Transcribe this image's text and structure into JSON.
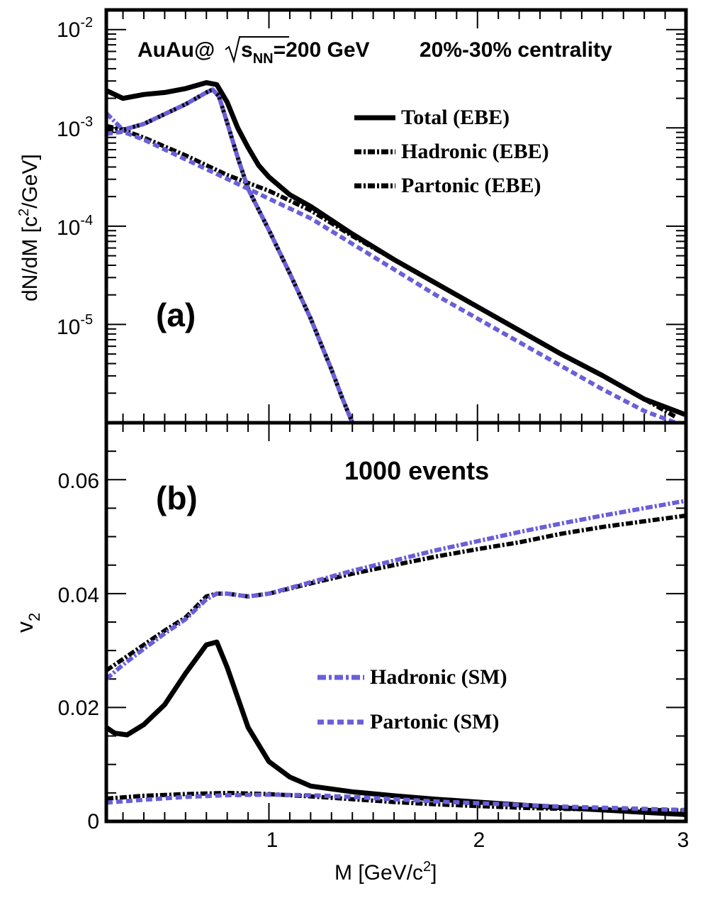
{
  "chart_data": [
    {
      "panel": "(a)",
      "type": "line",
      "yscale": "log",
      "xlim": [
        0.22,
        3.0
      ],
      "ylim_log10": [
        -6.0,
        -1.8
      ],
      "ylabel": "dN/dM [c2/GeV]",
      "y_ticks_log10": [
        -2,
        -3,
        -4,
        -5
      ],
      "annotation": "AuAu@√s_NN=200 GeV   20%-30% centrality",
      "annotation_parts": {
        "system": "AuAu@",
        "sym": "s",
        "sub": "NN",
        "energy": "=200 GeV",
        "centrality": "20%-30% centrality"
      },
      "panel_label": "(a)",
      "legend": [
        "Total (EBE)",
        "Hadronic (EBE)",
        "Partonic (EBE)"
      ],
      "series": [
        {
          "name": "Total (EBE)",
          "color": "#000000",
          "style": "solid",
          "x": [
            0.22,
            0.3,
            0.4,
            0.5,
            0.6,
            0.7,
            0.75,
            0.8,
            0.85,
            0.9,
            0.95,
            1.0,
            1.1,
            1.2,
            1.4,
            1.6,
            1.8,
            2.0,
            2.2,
            2.4,
            2.6,
            2.8,
            3.0
          ],
          "y": [
            -2.62,
            -2.7,
            -2.66,
            -2.64,
            -2.6,
            -2.54,
            -2.56,
            -2.74,
            -3.0,
            -3.2,
            -3.38,
            -3.5,
            -3.68,
            -3.8,
            -4.08,
            -4.34,
            -4.58,
            -4.82,
            -5.06,
            -5.3,
            -5.52,
            -5.76,
            -5.92
          ]
        },
        {
          "name": "Hadronic (EBE)",
          "color": "#000000",
          "style": "dashdot",
          "x": [
            0.22,
            0.3,
            0.4,
            0.5,
            0.6,
            0.7,
            0.73,
            0.76,
            0.8,
            0.85,
            0.9,
            1.0,
            1.1,
            1.2,
            1.3,
            1.35,
            1.4
          ],
          "y": [
            -3.02,
            -3.02,
            -2.96,
            -2.86,
            -2.76,
            -2.64,
            -2.61,
            -2.68,
            -2.95,
            -3.3,
            -3.62,
            -4.04,
            -4.48,
            -4.94,
            -5.46,
            -5.74,
            -6.0
          ]
        },
        {
          "name": "Partonic (EBE)",
          "color": "#000000",
          "style": "dashdot",
          "x": [
            0.22,
            0.3,
            0.4,
            0.6,
            0.8,
            1.0,
            1.2,
            1.4,
            1.6,
            1.8,
            2.0,
            2.2,
            2.4,
            2.6,
            2.8,
            2.95
          ],
          "y": [
            -2.98,
            -3.02,
            -3.1,
            -3.28,
            -3.48,
            -3.64,
            -3.84,
            -4.1,
            -4.34,
            -4.58,
            -4.82,
            -5.06,
            -5.3,
            -5.52,
            -5.76,
            -5.94
          ]
        },
        {
          "name": "Hadronic (SM)",
          "color": "#6a5fd8",
          "style": "dashdot",
          "x": [
            0.22,
            0.3,
            0.4,
            0.5,
            0.6,
            0.7,
            0.73,
            0.76,
            0.8,
            0.85,
            0.9,
            1.0,
            1.1,
            1.2,
            1.3,
            1.35,
            1.4
          ],
          "y": [
            -2.85,
            -3.02,
            -2.96,
            -2.86,
            -2.76,
            -2.64,
            -2.61,
            -2.68,
            -2.95,
            -3.3,
            -3.62,
            -4.04,
            -4.48,
            -4.94,
            -5.46,
            -5.74,
            -6.0
          ]
        },
        {
          "name": "Partonic (SM)",
          "color": "#6a5fd8",
          "style": "dashed",
          "x": [
            0.22,
            0.3,
            0.4,
            0.6,
            0.8,
            1.0,
            1.2,
            1.4,
            1.6,
            1.8,
            2.0,
            2.2,
            2.4,
            2.6,
            2.8,
            2.95
          ],
          "y": [
            -3.06,
            -3.04,
            -3.12,
            -3.32,
            -3.52,
            -3.72,
            -3.92,
            -4.18,
            -4.44,
            -4.7,
            -4.94,
            -5.18,
            -5.42,
            -5.66,
            -5.88,
            -6.0
          ]
        }
      ]
    },
    {
      "panel": "(b)",
      "type": "line",
      "xlim": [
        0.22,
        3.0
      ],
      "ylim": [
        0,
        0.07
      ],
      "xlabel": "M [GeV/c2]",
      "ylabel": "v2",
      "x_ticks": [
        1,
        2,
        3
      ],
      "y_ticks": [
        0,
        0.02,
        0.04,
        0.06
      ],
      "y_tick_labels": [
        "0",
        "0.02",
        "0.04",
        "0.06"
      ],
      "annotation": "1000 events",
      "panel_label": "(b)",
      "legend": [
        "Hadronic (SM)",
        "Partonic (SM)"
      ],
      "series": [
        {
          "name": "Total (EBE)",
          "color": "#000000",
          "style": "solid",
          "x": [
            0.22,
            0.26,
            0.32,
            0.4,
            0.5,
            0.6,
            0.7,
            0.75,
            0.8,
            0.9,
            1.0,
            1.1,
            1.2,
            1.4,
            1.6,
            1.8,
            2.0,
            2.2,
            2.4,
            2.6,
            2.8,
            3.0
          ],
          "y": [
            0.0165,
            0.0155,
            0.0152,
            0.017,
            0.0205,
            0.026,
            0.031,
            0.0315,
            0.027,
            0.0165,
            0.0105,
            0.0078,
            0.0062,
            0.0052,
            0.0045,
            0.0039,
            0.0034,
            0.0029,
            0.0024,
            0.002,
            0.0016,
            0.0012
          ]
        },
        {
          "name": "Hadronic (EBE)",
          "color": "#000000",
          "style": "dashdot",
          "x": [
            0.22,
            0.3,
            0.4,
            0.5,
            0.6,
            0.7,
            0.75,
            0.8,
            0.9,
            1.0,
            1.2,
            1.4,
            1.6,
            1.8,
            2.0,
            2.2,
            2.4,
            2.6,
            2.8,
            3.0
          ],
          "y": [
            0.0265,
            0.0285,
            0.031,
            0.0335,
            0.0358,
            0.0395,
            0.04,
            0.04,
            0.0395,
            0.04,
            0.0418,
            0.0435,
            0.045,
            0.0465,
            0.0478,
            0.049,
            0.0505,
            0.0517,
            0.0527,
            0.0537
          ]
        },
        {
          "name": "Partonic (EBE)",
          "color": "#000000",
          "style": "dashdot",
          "x": [
            0.22,
            0.4,
            0.6,
            0.8,
            1.0,
            1.2,
            1.4,
            1.6,
            1.8,
            2.0,
            2.2,
            2.4,
            2.6,
            2.8,
            3.0
          ],
          "y": [
            0.004,
            0.0045,
            0.0048,
            0.005,
            0.0048,
            0.0044,
            0.0039,
            0.0034,
            0.003,
            0.0027,
            0.0024,
            0.0022,
            0.0021,
            0.002,
            0.0019
          ]
        },
        {
          "name": "Hadronic (SM)",
          "color": "#6a5fd8",
          "style": "dashdot",
          "x": [
            0.22,
            0.3,
            0.4,
            0.5,
            0.6,
            0.7,
            0.75,
            0.8,
            0.9,
            1.0,
            1.2,
            1.4,
            1.6,
            1.8,
            2.0,
            2.2,
            2.4,
            2.6,
            2.8,
            3.0
          ],
          "y": [
            0.025,
            0.0275,
            0.0303,
            0.033,
            0.0355,
            0.039,
            0.04,
            0.04,
            0.0395,
            0.04,
            0.042,
            0.044,
            0.0458,
            0.0476,
            0.0492,
            0.0508,
            0.0523,
            0.0537,
            0.055,
            0.0563
          ]
        },
        {
          "name": "Partonic (SM)",
          "color": "#6a5fd8",
          "style": "dashed",
          "x": [
            0.22,
            0.4,
            0.6,
            0.8,
            1.0,
            1.2,
            1.4,
            1.6,
            1.8,
            2.0,
            2.2,
            2.4,
            2.6,
            2.8,
            3.0
          ],
          "y": [
            0.0033,
            0.0038,
            0.0043,
            0.0046,
            0.0047,
            0.0046,
            0.0043,
            0.0039,
            0.0035,
            0.0032,
            0.0029,
            0.0026,
            0.0024,
            0.0022,
            0.002
          ]
        }
      ]
    }
  ]
}
